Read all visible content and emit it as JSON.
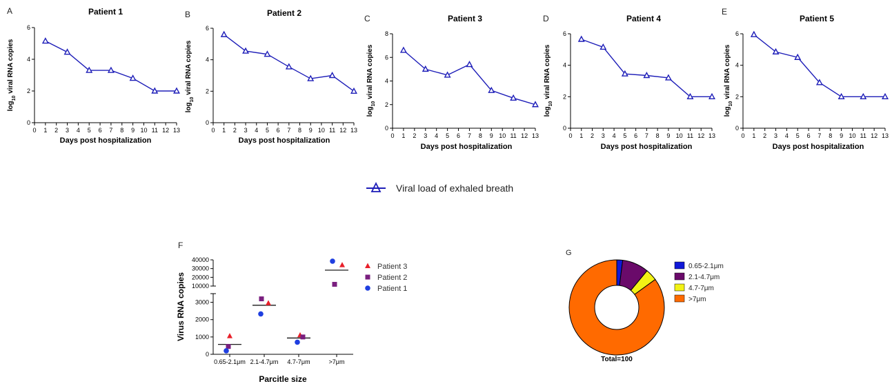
{
  "line_legend_label": "Viral load of exhaled breath",
  "colors": {
    "line": "#1d1db8",
    "patient1": "#1f3fe0",
    "patient2": "#7a1f7f",
    "patient3": "#e8202a",
    "seg1": "#1018d8",
    "seg2": "#6a0a6a",
    "seg3": "#f2f215",
    "seg4": "#ff6a00",
    "mean_line": "#000000"
  },
  "chart_data": [
    {
      "type": "line",
      "panel": "A",
      "title": "Patient 1",
      "xlabel": "Days post hospitalization",
      "ylabel": "log10 viral RNA copies",
      "xlim": [
        0,
        13
      ],
      "ylim": [
        0,
        6
      ],
      "xticks": [
        "0",
        "1",
        "2",
        "3",
        "4",
        "5",
        "6",
        "7",
        "8",
        "9",
        "10",
        "11",
        "12",
        "13"
      ],
      "yticks": [
        "0",
        "2",
        "4",
        "6"
      ],
      "series": [
        {
          "name": "Viral load of exhaled breath",
          "x": [
            1,
            3,
            5,
            7,
            9,
            11,
            13
          ],
          "y": [
            5.15,
            4.45,
            3.3,
            3.3,
            2.8,
            2.0,
            2.0
          ]
        }
      ]
    },
    {
      "type": "line",
      "panel": "B",
      "title": "Patient 2",
      "xlabel": "Days post hospitalization",
      "ylabel": "log10 viral RNA copies",
      "xlim": [
        0,
        13
      ],
      "ylim": [
        0,
        6
      ],
      "xticks": [
        "0",
        "1",
        "2",
        "3",
        "4",
        "5",
        "6",
        "7",
        "8",
        "9",
        "10",
        "11",
        "12",
        "13"
      ],
      "yticks": [
        "0",
        "2",
        "4",
        "6"
      ],
      "series": [
        {
          "name": "Viral load of exhaled breath",
          "x": [
            1,
            3,
            5,
            7,
            9,
            11,
            13
          ],
          "y": [
            5.6,
            4.55,
            4.35,
            3.55,
            2.8,
            3.0,
            2.0
          ]
        }
      ]
    },
    {
      "type": "line",
      "panel": "C",
      "title": "Patient 3",
      "xlabel": "Days post hospitalization",
      "ylabel": "log10 viral RNA copies",
      "xlim": [
        0,
        13
      ],
      "ylim": [
        0,
        8
      ],
      "xticks": [
        "0",
        "1",
        "2",
        "3",
        "4",
        "5",
        "6",
        "7",
        "8",
        "9",
        "10",
        "11",
        "12",
        "13"
      ],
      "yticks": [
        "0",
        "2",
        "4",
        "6",
        "8"
      ],
      "series": [
        {
          "name": "Viral load of exhaled breath",
          "x": [
            1,
            3,
            5,
            7,
            9,
            11,
            13
          ],
          "y": [
            6.6,
            5.0,
            4.5,
            5.4,
            3.2,
            2.55,
            2.0
          ]
        }
      ]
    },
    {
      "type": "line",
      "panel": "D",
      "title": "Patient 4",
      "xlabel": "Days post hospitalization",
      "ylabel": "log10 viral RNA copies",
      "xlim": [
        0,
        13
      ],
      "ylim": [
        0,
        6
      ],
      "xticks": [
        "0",
        "1",
        "2",
        "3",
        "4",
        "5",
        "6",
        "7",
        "8",
        "9",
        "10",
        "11",
        "12",
        "13"
      ],
      "yticks": [
        "0",
        "2",
        "4",
        "6"
      ],
      "series": [
        {
          "name": "Viral load of exhaled breath",
          "x": [
            1,
            3,
            5,
            7,
            9,
            11,
            13
          ],
          "y": [
            5.65,
            5.15,
            3.45,
            3.35,
            3.2,
            2.0,
            2.0
          ]
        }
      ]
    },
    {
      "type": "line",
      "panel": "E",
      "title": "Patient 5",
      "xlabel": "Days post hospitalization",
      "ylabel": "log10 viral RNA copies",
      "xlim": [
        0,
        13
      ],
      "ylim": [
        0,
        6
      ],
      "xticks": [
        "0",
        "1",
        "2",
        "3",
        "4",
        "5",
        "6",
        "7",
        "8",
        "9",
        "10",
        "11",
        "12",
        "13"
      ],
      "yticks": [
        "0",
        "2",
        "4",
        "6"
      ],
      "series": [
        {
          "name": "Viral load of exhaled breath",
          "x": [
            1,
            3,
            5,
            7,
            9,
            11,
            13
          ],
          "y": [
            5.95,
            4.85,
            4.5,
            2.9,
            2.0,
            2.0,
            2.0
          ]
        }
      ]
    },
    {
      "type": "scatter",
      "panel": "F",
      "xlabel": "Parcitle size",
      "ylabel": "Virus RNA copies",
      "categories": [
        "0.65-2.1μm",
        "2.1-4.7μm",
        "4.7-7μm",
        ">7μm"
      ],
      "yticks_lower": [
        "0",
        "1000",
        "2000",
        "3000"
      ],
      "yticks_upper": [
        "10000",
        "20000",
        "30000",
        "40000"
      ],
      "y_axis_break": [
        3500,
        10000
      ],
      "series": [
        {
          "name": "Patient 3",
          "marker": "triangle",
          "values": [
            1050,
            2950,
            1100,
            34000
          ]
        },
        {
          "name": "Patient 2",
          "marker": "square",
          "values": [
            450,
            3200,
            1000,
            12000
          ]
        },
        {
          "name": "Patient 1",
          "marker": "circle",
          "values": [
            200,
            2330,
            700,
            38500
          ]
        }
      ],
      "means": [
        570,
        2830,
        940,
        28200
      ]
    },
    {
      "type": "pie",
      "panel": "G",
      "donut": true,
      "total_label": "Total=100",
      "labels": [
        "0.65-2.1μm",
        "2.1-4.7μm",
        "4.7-7μm",
        ">7μm"
      ],
      "values": [
        2,
        9,
        4,
        85
      ]
    }
  ]
}
